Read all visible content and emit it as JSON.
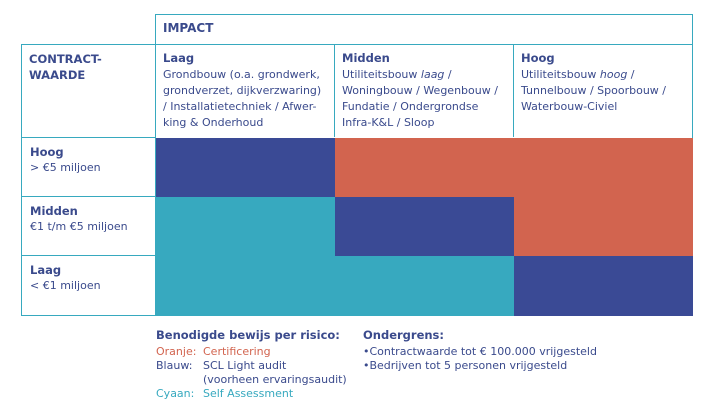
{
  "header": {
    "impact": "IMPACT",
    "contract_value": "CONTRACT-\nWAARDE"
  },
  "columns": [
    {
      "title": "Laag",
      "text_before": "Grondbouw (o.a. grondwerk, grondverzet, dijkverzwaring) / Installatietechniek / Afwer-king & Onderhoud",
      "italic": "",
      "text_after": ""
    },
    {
      "title": "Midden",
      "text_before": "Utiliteitsbouw ",
      "italic": "laag",
      "text_after": " / Woningbouw / Wegenbouw / Fundatie / Ondergrondse Infra-K&L / Sloop"
    },
    {
      "title": "Hoog",
      "text_before": "Utiliteitsbouw ",
      "italic": "hoog",
      "text_after": " / Tunnelbouw / Spoorbouw / Waterbouw-Civiel"
    }
  ],
  "rows": [
    {
      "title": "Hoog",
      "sub": "> €5 miljoen"
    },
    {
      "title": "Midden",
      "sub": "€1 t/m €5 miljoen"
    },
    {
      "title": "Laag",
      "sub": "< €1 miljoen"
    }
  ],
  "matrix": [
    [
      "blue",
      "orange",
      "orange"
    ],
    [
      "cyan",
      "blue",
      "orange"
    ],
    [
      "cyan",
      "cyan",
      "blue"
    ]
  ],
  "colors": {
    "blue": "#3a4a95",
    "orange": "#d2644f",
    "cyan": "#37a9bf",
    "text": "#3a4a8c"
  },
  "legend": {
    "title": "Benodigde bewijs per risico:",
    "items": [
      {
        "key": "Oranje:",
        "value": "Certificering",
        "color": "#d2644f"
      },
      {
        "key": "Blauw:",
        "value": "SCL Light audit",
        "value2": "(voorheen ervaringsaudit)",
        "color": "#3a4a8c"
      },
      {
        "key": "Cyaan:",
        "value": "Self Assessment",
        "color": "#37a9bf"
      }
    ]
  },
  "ondergrens": {
    "title": "Ondergrens:",
    "items": [
      "•Contractwaarde tot € 100.000 vrijgesteld",
      "•Bedrijven tot 5 personen vrijgesteld"
    ]
  }
}
